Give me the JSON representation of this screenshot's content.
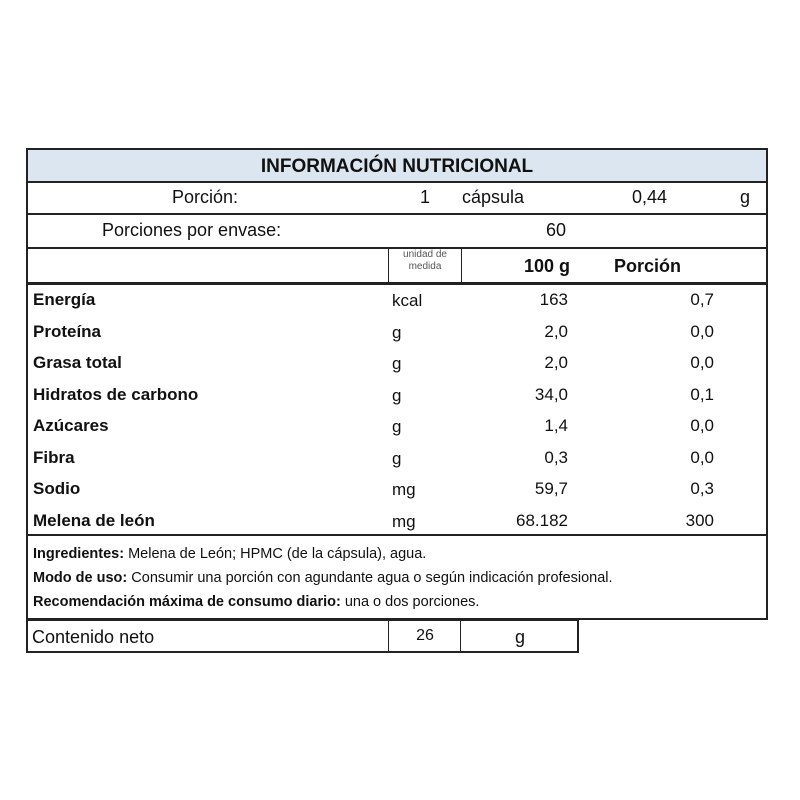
{
  "title": "INFORMACIÓN  NUTRICIONAL",
  "portion": {
    "label": "Porción:",
    "qty": "1",
    "unit_name": "cápsula",
    "weight": "0,44",
    "weight_unit": "g"
  },
  "servings": {
    "label": "Porciones por envase:",
    "value": "60"
  },
  "header": {
    "unit_label": "unidad de medida",
    "col_100g": "100 g",
    "col_portion": "Porción"
  },
  "rows": [
    {
      "name": "Energía",
      "unit": "kcal",
      "per100": "163",
      "portion": "0,7"
    },
    {
      "name": "Proteína",
      "unit": "g",
      "per100": "2,0",
      "portion": "0,0"
    },
    {
      "name": "Grasa total",
      "unit": "g",
      "per100": "2,0",
      "portion": "0,0"
    },
    {
      "name": "Hidratos de carbono",
      "unit": "g",
      "per100": "34,0",
      "portion": "0,1"
    },
    {
      "name": "Azúcares",
      "unit": "g",
      "per100": "1,4",
      "portion": "0,0"
    },
    {
      "name": "Fibra",
      "unit": "g",
      "per100": "0,3",
      "portion": "0,0"
    },
    {
      "name": "Sodio",
      "unit": "mg",
      "per100": "59,7",
      "portion": "0,3"
    },
    {
      "name": "Melena de león",
      "unit": "mg",
      "per100": "68.182",
      "portion": "300"
    }
  ],
  "info": {
    "ingredients_label": "Ingredientes:",
    "ingredients": " Melena de León; HPMC (de la cápsula), agua.",
    "usage_label": "Modo de uso:",
    "usage": " Consumir una porción con agundante agua o según indicación profesional.",
    "max_label": "Recomendación máxima de consumo diario:",
    "max": " una o dos porciones."
  },
  "net": {
    "label": "Contenido neto",
    "value": "26",
    "unit": "g"
  }
}
